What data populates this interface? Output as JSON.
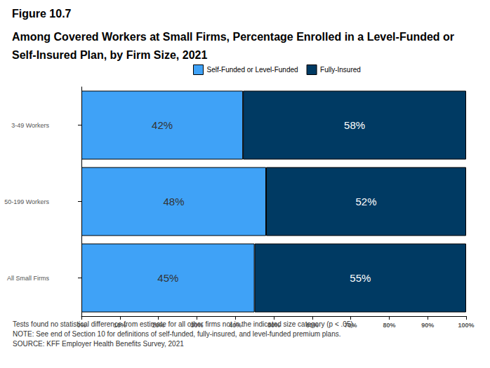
{
  "chart_data": {
    "type": "bar",
    "title": "Figure 10.7",
    "subtitle": "Among Covered Workers at Small Firms, Percentage Enrolled in a Level-Funded or Self-Insured Plan, by Firm Size, 2021",
    "categories": [
      "3-49 Workers",
      "50-199 Workers",
      "All Small Firms"
    ],
    "series": [
      {
        "name": "Self-Funded or Level-Funded",
        "color": "#3fa2f7",
        "values": [
          42,
          48,
          45
        ],
        "value_labels": [
          "42%",
          "48%",
          "45%"
        ]
      },
      {
        "name": "Fully-Insured",
        "color": "#003a63",
        "values": [
          58,
          52,
          55
        ],
        "value_labels": [
          "58%",
          "52%",
          "55%"
        ]
      }
    ],
    "orientation": "horizontal",
    "stacked": true,
    "data_labels": true,
    "grid": false,
    "legend": "top",
    "xlim": [
      0,
      100
    ],
    "xticks": [
      {
        "value": 0,
        "label": "0%"
      },
      {
        "value": 10,
        "label": "10%"
      },
      {
        "value": 20,
        "label": "20%"
      },
      {
        "value": 30,
        "label": "30%"
      },
      {
        "value": 40,
        "label": "40%"
      },
      {
        "value": 50,
        "label": "50%"
      },
      {
        "value": 60,
        "label": "60%"
      },
      {
        "value": 70,
        "label": "70%"
      },
      {
        "value": 80,
        "label": "80%"
      },
      {
        "value": 90,
        "label": "90%"
      },
      {
        "value": 100,
        "label": "100%"
      }
    ],
    "annotations": [
      "Tests found no statistical difference from estimate for all other firms not in the indicated size category (p < .05).",
      "NOTE: See end of Section 10 for definitions of self-funded, fully-insured, and level-funded premium plans.",
      "SOURCE: KFF Employer Health Benefits Survey, 2021"
    ]
  }
}
